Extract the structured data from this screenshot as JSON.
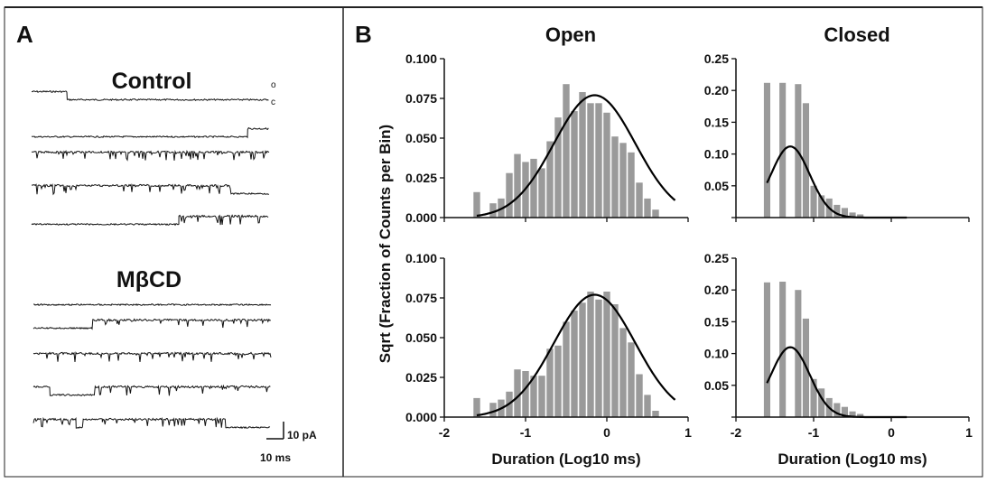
{
  "figure": {
    "panel_a_label": "A",
    "panel_b_label": "B",
    "ylabel": "Sqrt (Fraction of Counts per Bin)"
  },
  "panel_a": {
    "control_title": "Control",
    "mbcd_title": "MβCD",
    "open_marker": "o",
    "closed_marker": "c",
    "scale_current": "10 pA",
    "scale_time": "10 ms",
    "control_traces": [
      {
        "segments": [
          [
            0,
            0.15,
            "open"
          ],
          [
            0.15,
            1,
            "closed"
          ]
        ]
      },
      {
        "segments": [
          [
            0,
            0.91,
            "closed"
          ],
          [
            0.91,
            1,
            "open"
          ]
        ]
      },
      {
        "segments": [
          [
            0,
            1,
            "open-flicker"
          ]
        ]
      },
      {
        "segments": [
          [
            0,
            0.84,
            "open-flicker"
          ],
          [
            0.84,
            1,
            "closed"
          ]
        ]
      },
      {
        "segments": [
          [
            0,
            0.62,
            "closed"
          ],
          [
            0.62,
            1,
            "open-flicker"
          ]
        ]
      }
    ],
    "mbcd_traces": [
      {
        "segments": [
          [
            0,
            1,
            "closed"
          ]
        ]
      },
      {
        "segments": [
          [
            0,
            0.25,
            "closed"
          ],
          [
            0.25,
            1,
            "open-flicker"
          ]
        ]
      },
      {
        "segments": [
          [
            0,
            1,
            "open-flicker"
          ]
        ]
      },
      {
        "segments": [
          [
            0,
            0.07,
            "open"
          ],
          [
            0.07,
            0.26,
            "closed"
          ],
          [
            0.26,
            1,
            "open-flicker"
          ]
        ]
      },
      {
        "segments": [
          [
            0,
            0.18,
            "open-flicker"
          ],
          [
            0.18,
            0.21,
            "closed"
          ],
          [
            0.21,
            0.29,
            "open"
          ],
          [
            0.29,
            0.81,
            "open-flicker"
          ],
          [
            0.81,
            1,
            "closed"
          ]
        ]
      }
    ]
  },
  "chart_data": [
    {
      "type": "bar",
      "title": "Open",
      "xlabel": "",
      "xlim": [
        -2,
        1
      ],
      "ylim": [
        0,
        0.1
      ],
      "yticks": [
        "0.000",
        "0.025",
        "0.050",
        "0.075",
        "0.100"
      ],
      "xticks": [],
      "bin_centers": [
        -1.6,
        -1.5,
        -1.4,
        -1.3,
        -1.2,
        -1.1,
        -1.0,
        -0.9,
        -0.8,
        -0.7,
        -0.6,
        -0.5,
        -0.4,
        -0.3,
        -0.2,
        -0.1,
        0.0,
        0.1,
        0.2,
        0.3,
        0.4,
        0.5,
        0.6
      ],
      "values": [
        0.016,
        0,
        0.009,
        0.012,
        0.028,
        0.04,
        0.035,
        0.037,
        0.031,
        0.048,
        0.063,
        0.084,
        0.067,
        0.079,
        0.072,
        0.072,
        0.066,
        0.051,
        0.047,
        0.041,
        0.022,
        0.012,
        0.005
      ],
      "fit": {
        "center": -0.15,
        "sigma": 0.5,
        "amp": 0.077,
        "start": -1.6,
        "end": 0.85
      }
    },
    {
      "type": "bar",
      "title": "Closed",
      "xlabel": "",
      "xlim": [
        -2,
        1
      ],
      "ylim": [
        0,
        0.25
      ],
      "yticks": [
        "",
        "0.05",
        "0.10",
        "0.15",
        "0.20",
        "0.25"
      ],
      "xticks": [],
      "bin_centers": [
        -1.6,
        -1.5,
        -1.4,
        -1.3,
        -1.2,
        -1.1,
        -1.0,
        -0.9,
        -0.8,
        -0.7,
        -0.6,
        -0.5,
        -0.4
      ],
      "values": [
        0.212,
        0,
        0.212,
        0,
        0.21,
        0.18,
        0.05,
        0.035,
        0.03,
        0.02,
        0.015,
        0.008,
        0.005
      ],
      "fit": {
        "center": -1.3,
        "sigma": 0.25,
        "amp": 0.112,
        "start": -1.6,
        "end": 0.2
      }
    },
    {
      "type": "bar",
      "title": "",
      "xlabel": "Duration (Log10 ms)",
      "xlim": [
        -2,
        1
      ],
      "ylim": [
        0,
        0.1
      ],
      "yticks": [
        "0.000",
        "0.025",
        "0.050",
        "0.075",
        "0.100"
      ],
      "xticks": [
        "-2",
        "-1",
        "0",
        "1"
      ],
      "bin_centers": [
        -1.6,
        -1.5,
        -1.4,
        -1.3,
        -1.2,
        -1.1,
        -1.0,
        -0.9,
        -0.8,
        -0.7,
        -0.6,
        -0.5,
        -0.4,
        -0.3,
        -0.2,
        -0.1,
        0.0,
        0.1,
        0.2,
        0.3,
        0.4,
        0.5,
        0.6
      ],
      "values": [
        0.012,
        0,
        0.009,
        0.011,
        0.016,
        0.03,
        0.029,
        0.026,
        0.026,
        0.043,
        0.045,
        0.06,
        0.067,
        0.072,
        0.079,
        0.074,
        0.079,
        0.071,
        0.056,
        0.047,
        0.027,
        0.014,
        0.004
      ],
      "fit": {
        "center": -0.15,
        "sigma": 0.5,
        "amp": 0.077,
        "start": -1.6,
        "end": 0.85
      }
    },
    {
      "type": "bar",
      "title": "",
      "xlabel": "Duration (Log10 ms)",
      "xlim": [
        -2,
        1
      ],
      "ylim": [
        0,
        0.25
      ],
      "yticks": [
        "",
        "0.05",
        "0.10",
        "0.15",
        "0.20",
        "0.25"
      ],
      "xticks": [
        "-2",
        "-1",
        "0",
        "1"
      ],
      "bin_centers": [
        -1.6,
        -1.5,
        -1.4,
        -1.3,
        -1.2,
        -1.1,
        -1.0,
        -0.9,
        -0.8,
        -0.7,
        -0.6,
        -0.5,
        -0.4
      ],
      "values": [
        0.212,
        0,
        0.213,
        0,
        0.2,
        0.155,
        0.06,
        0.045,
        0.03,
        0.022,
        0.016,
        0.009,
        0.005
      ],
      "fit": {
        "center": -1.3,
        "sigma": 0.25,
        "amp": 0.11,
        "start": -1.6,
        "end": 0.2
      }
    }
  ]
}
